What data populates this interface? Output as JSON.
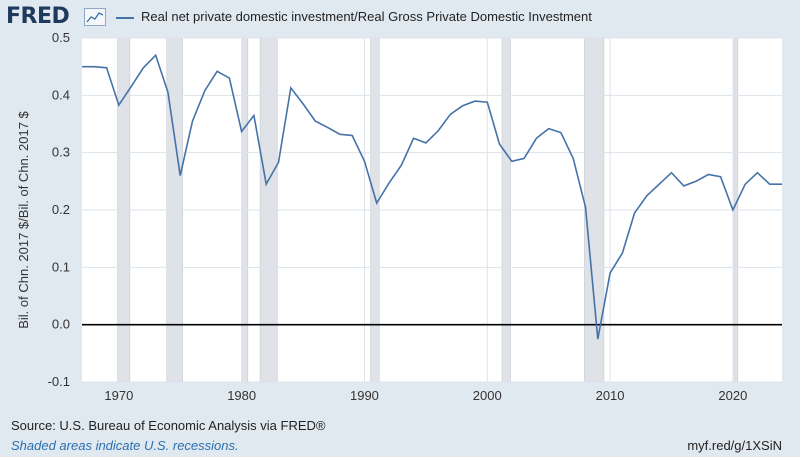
{
  "header": {
    "logo": "FRED",
    "logo_icon": "fred-chart-icon",
    "legend_label": "Real net private domestic investment/Real Gross Private Domestic Investment"
  },
  "footer": {
    "source": "U.S. Bureau of Economic Analysis via FRED®",
    "note": "Shaded areas indicate U.S. recessions.",
    "link": "myf.red/g/1XSiN"
  },
  "colors": {
    "series": "#4572a7",
    "recession": "#dfe2e7",
    "plot_bg": "#ffffff",
    "grid": "#dde3ea",
    "zero_line": "#000000"
  },
  "chart_data": {
    "type": "line",
    "title": "",
    "xlabel": "",
    "ylabel": "Bil. of Chn. 2017 $/Bil. of Chn. 2017 $",
    "xlim": [
      1967,
      2024
    ],
    "ylim": [
      -0.1,
      0.5
    ],
    "x_ticks": [
      1970,
      1980,
      1990,
      2000,
      2010,
      2020
    ],
    "x_tick_labels": [
      "1970",
      "1980",
      "1990",
      "2000",
      "2010",
      "2020"
    ],
    "y_ticks": [
      -0.1,
      0.0,
      0.1,
      0.2,
      0.3,
      0.4,
      0.5
    ],
    "y_tick_labels": [
      "-0.1",
      "0.0",
      "0.1",
      "0.2",
      "0.3",
      "0.4",
      "0.5"
    ],
    "grid": true,
    "legend": "top",
    "recessions": [
      [
        1969.9,
        1970.9
      ],
      [
        1973.9,
        1975.2
      ],
      [
        1980.0,
        1980.5
      ],
      [
        1981.5,
        1982.9
      ],
      [
        1990.5,
        1991.2
      ],
      [
        2001.2,
        2001.9
      ],
      [
        2007.9,
        2009.5
      ],
      [
        2020.1,
        2020.4
      ]
    ],
    "series": [
      {
        "name": "Real net private domestic investment/Real Gross Private Domestic Investment",
        "x": [
          1967,
          1968,
          1969,
          1970,
          1971,
          1972,
          1973,
          1974,
          1975,
          1976,
          1977,
          1978,
          1979,
          1980,
          1981,
          1982,
          1983,
          1984,
          1985,
          1986,
          1987,
          1988,
          1989,
          1990,
          1991,
          1992,
          1993,
          1994,
          1995,
          1996,
          1997,
          1998,
          1999,
          2000,
          2001,
          2002,
          2003,
          2004,
          2005,
          2006,
          2007,
          2008,
          2009,
          2010,
          2011,
          2012,
          2013,
          2014,
          2015,
          2016,
          2017,
          2018,
          2019,
          2020,
          2021,
          2022,
          2023,
          2024
        ],
        "values": [
          0.45,
          0.45,
          0.448,
          0.383,
          0.415,
          0.448,
          0.47,
          0.405,
          0.26,
          0.355,
          0.408,
          0.442,
          0.43,
          0.337,
          0.365,
          0.245,
          0.283,
          0.413,
          0.385,
          0.355,
          0.344,
          0.332,
          0.33,
          0.285,
          0.212,
          0.247,
          0.278,
          0.325,
          0.317,
          0.338,
          0.367,
          0.382,
          0.39,
          0.388,
          0.315,
          0.285,
          0.29,
          0.325,
          0.342,
          0.335,
          0.29,
          0.205,
          -0.025,
          0.09,
          0.125,
          0.195,
          0.225,
          0.245,
          0.265,
          0.242,
          0.25,
          0.262,
          0.258,
          0.2,
          0.245,
          0.265,
          0.245,
          0.245
        ]
      }
    ]
  }
}
